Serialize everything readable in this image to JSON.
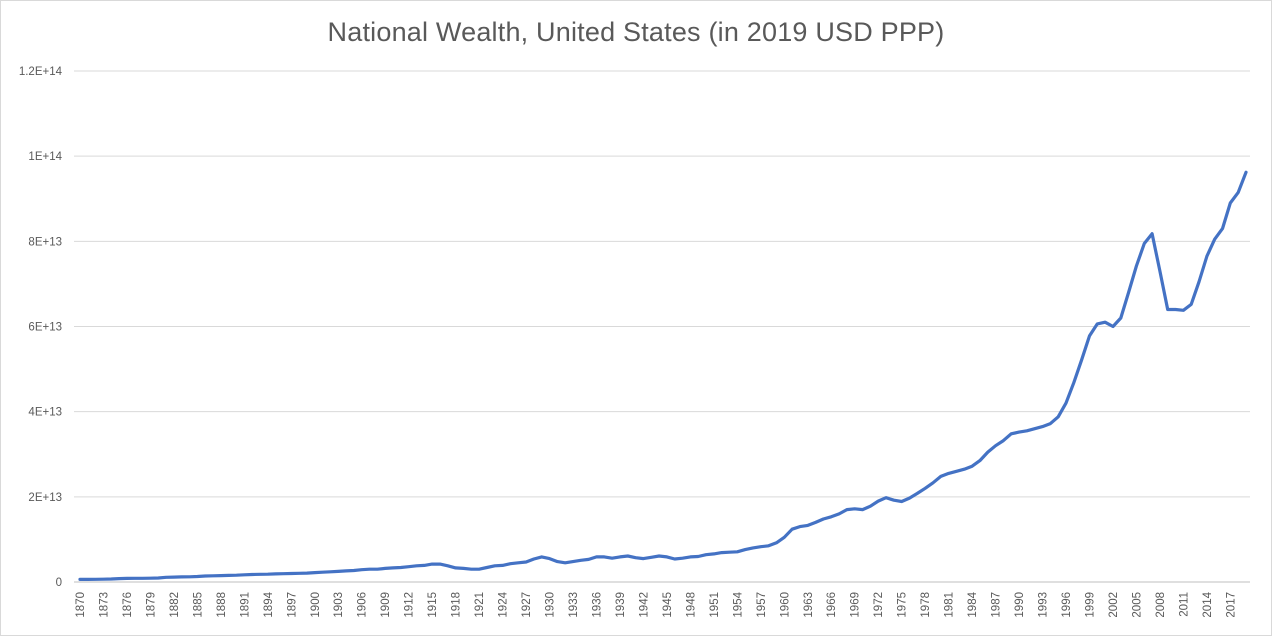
{
  "chart_data": {
    "type": "line",
    "title": "National Wealth, United States (in 2019 USD PPP)",
    "xlabel": "",
    "ylabel": "",
    "ylim": [
      0,
      120000000000000
    ],
    "grid": true,
    "legend": "none",
    "y_ticks": [
      {
        "value": 0,
        "label": "0"
      },
      {
        "value": 20000000000000,
        "label": "2E+13"
      },
      {
        "value": 40000000000000,
        "label": "4E+13"
      },
      {
        "value": 60000000000000,
        "label": "6E+13"
      },
      {
        "value": 80000000000000,
        "label": "8E+13"
      },
      {
        "value": 100000000000000,
        "label": "1E+14"
      },
      {
        "value": 120000000000000,
        "label": "1.2E+14"
      }
    ],
    "x_tick_labels": [
      "1870",
      "1873",
      "1876",
      "1879",
      "1882",
      "1885",
      "1888",
      "1891",
      "1894",
      "1897",
      "1900",
      "1903",
      "1906",
      "1909",
      "1912",
      "1915",
      "1918",
      "1921",
      "1924",
      "1927",
      "1930",
      "1933",
      "1936",
      "1939",
      "1942",
      "1945",
      "1948",
      "1951",
      "1954",
      "1957",
      "1960",
      "1963",
      "1966",
      "1969",
      "1972",
      "1975",
      "1978",
      "1981",
      "1984",
      "1987",
      "1990",
      "1993",
      "1996",
      "1999",
      "2002",
      "2005",
      "2008",
      "2011",
      "2014",
      "2017"
    ],
    "series": [
      {
        "color": "#4472c4",
        "x": [
          1870,
          1871,
          1872,
          1873,
          1874,
          1875,
          1876,
          1877,
          1878,
          1879,
          1880,
          1881,
          1882,
          1883,
          1884,
          1885,
          1886,
          1887,
          1888,
          1889,
          1890,
          1891,
          1892,
          1893,
          1894,
          1895,
          1896,
          1897,
          1898,
          1899,
          1900,
          1901,
          1902,
          1903,
          1904,
          1905,
          1906,
          1907,
          1908,
          1909,
          1910,
          1911,
          1912,
          1913,
          1914,
          1915,
          1916,
          1917,
          1918,
          1919,
          1920,
          1921,
          1922,
          1923,
          1924,
          1925,
          1926,
          1927,
          1928,
          1929,
          1930,
          1931,
          1932,
          1933,
          1934,
          1935,
          1936,
          1937,
          1938,
          1939,
          1940,
          1941,
          1942,
          1943,
          1944,
          1945,
          1946,
          1947,
          1948,
          1949,
          1950,
          1951,
          1952,
          1953,
          1954,
          1955,
          1956,
          1957,
          1958,
          1959,
          1960,
          1961,
          1962,
          1963,
          1964,
          1965,
          1966,
          1967,
          1968,
          1969,
          1970,
          1971,
          1972,
          1973,
          1974,
          1975,
          1976,
          1977,
          1978,
          1979,
          1980,
          1981,
          1982,
          1983,
          1984,
          1985,
          1986,
          1987,
          1988,
          1989,
          1990,
          1991,
          1992,
          1993,
          1994,
          1995,
          1996,
          1997,
          1998,
          1999,
          2000,
          2001,
          2002,
          2003,
          2004,
          2005,
          2006,
          2007,
          2008,
          2009,
          2010,
          2011,
          2012,
          2013,
          2014,
          2015,
          2016,
          2017,
          2018,
          2019
        ],
        "values": [
          600000000000.0,
          620000000000.0,
          640000000000.0,
          660000000000.0,
          700000000000.0,
          800000000000.0,
          850000000000.0,
          860000000000.0,
          870000000000.0,
          900000000000.0,
          950000000000.0,
          1100000000000.0,
          1150000000000.0,
          1200000000000.0,
          1220000000000.0,
          1300000000000.0,
          1400000000000.0,
          1450000000000.0,
          1500000000000.0,
          1550000000000.0,
          1600000000000.0,
          1700000000000.0,
          1750000000000.0,
          1800000000000.0,
          1820000000000.0,
          1900000000000.0,
          1950000000000.0,
          2000000000000.0,
          2050000000000.0,
          2100000000000.0,
          2200000000000.0,
          2300000000000.0,
          2400000000000.0,
          2500000000000.0,
          2600000000000.0,
          2700000000000.0,
          2900000000000.0,
          3000000000000.0,
          3000000000000.0,
          3200000000000.0,
          3300000000000.0,
          3400000000000.0,
          3600000000000.0,
          3800000000000.0,
          3900000000000.0,
          4200000000000.0,
          4200000000000.0,
          3800000000000.0,
          3300000000000.0,
          3200000000000.0,
          3000000000000.0,
          3000000000000.0,
          3400000000000.0,
          3800000000000.0,
          3900000000000.0,
          4300000000000.0,
          4500000000000.0,
          4700000000000.0,
          5400000000000.0,
          5900000000000.0,
          5500000000000.0,
          4800000000000.0,
          4500000000000.0,
          4800000000000.0,
          5100000000000.0,
          5300000000000.0,
          5900000000000.0,
          5900000000000.0,
          5600000000000.0,
          5900000000000.0,
          6100000000000.0,
          5700000000000.0,
          5500000000000.0,
          5800000000000.0,
          6100000000000.0,
          5900000000000.0,
          5400000000000.0,
          5600000000000.0,
          5900000000000.0,
          6000000000000.0,
          6400000000000.0,
          6600000000000.0,
          6900000000000.0,
          7000000000000.0,
          7100000000000.0,
          7600000000000.0,
          8000000000000.0,
          8300000000000.0,
          8500000000000.0,
          9200000000000.0,
          10500000000000.0,
          12400000000000.0,
          13000000000000.0,
          13300000000000.0,
          14000000000000.0,
          14800000000000.0,
          15300000000000.0,
          16000000000000.0,
          17000000000000.0,
          17200000000000.0,
          17000000000000.0,
          17800000000000.0,
          19000000000000.0,
          19800000000000.0,
          19200000000000.0,
          18900000000000.0,
          19700000000000.0,
          20800000000000.0,
          22000000000000.0,
          23300000000000.0,
          24800000000000.0,
          25500000000000.0,
          26000000000000.0,
          26500000000000.0,
          27200000000000.0,
          28500000000000.0,
          30500000000000.0,
          32000000000000.0,
          33200000000000.0,
          34800000000000.0,
          35200000000000.0,
          35500000000000.0,
          36000000000000.0,
          36500000000000.0,
          37200000000000.0,
          38800000000000.0,
          42000000000000.0,
          46800000000000.0,
          52200000000000.0,
          57800000000000.0,
          60600000000000.0,
          61000000000000.0,
          60000000000000.0,
          62000000000000.0,
          68000000000000.0,
          74200000000000.0,
          79500000000000.0,
          81800000000000.0,
          73000000000000.0,
          64000000000000.0,
          64000000000000.0,
          63800000000000.0,
          65200000000000.0,
          70500000000000.0,
          76500000000000.0,
          80500000000000.0,
          83000000000000.0,
          89000000000000.0,
          91500000000000.0,
          96200000000000.0
        ]
      }
    ]
  }
}
